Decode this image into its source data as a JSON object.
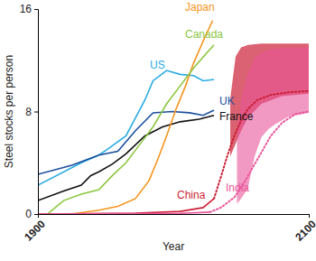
{
  "chart_data": {
    "type": "line",
    "x_label": "Year",
    "y_label": "Steel stocks per person",
    "xlim": [
      1900,
      2100
    ],
    "ylim": [
      0,
      16
    ],
    "xticks": [
      1900,
      2100
    ],
    "yticks": [
      0,
      8,
      16
    ],
    "grid": false,
    "series": [
      {
        "name": "US",
        "color": "#29abe2",
        "x": [
          1900,
          1932,
          1945,
          1952,
          1965,
          1972,
          1979,
          1985,
          1995,
          2005,
          2015,
          2022,
          2030
        ],
        "values": [
          2.25,
          4.0,
          4.6,
          5.1,
          6.1,
          7.5,
          8.9,
          10.4,
          11.2,
          10.9,
          10.8,
          10.4,
          10.5
        ]
      },
      {
        "name": "UK",
        "color": "#1b4f9c",
        "x": [
          1900,
          1925,
          1945,
          1959,
          1972,
          1985,
          1999,
          2012,
          2022,
          2030
        ],
        "values": [
          3.1,
          3.8,
          4.6,
          4.9,
          6.5,
          7.9,
          8.0,
          7.9,
          7.7,
          8.1
        ]
      },
      {
        "name": "France",
        "color": "#111111",
        "x": [
          1900,
          1919,
          1932,
          1939,
          1945,
          1955,
          1965,
          1979,
          1992,
          2005,
          2019,
          2030
        ],
        "values": [
          1.05,
          1.8,
          2.25,
          3.0,
          3.3,
          3.9,
          4.7,
          6.1,
          6.8,
          7.2,
          7.4,
          7.7
        ]
      },
      {
        "name": "Japan",
        "color": "#f7941d",
        "x": [
          1925,
          1945,
          1959,
          1972,
          1982,
          1989,
          1995,
          2002,
          2009,
          2015,
          2022,
          2029
        ],
        "values": [
          0,
          0.3,
          0.6,
          1.2,
          2.6,
          4.4,
          6.1,
          8.2,
          10.0,
          11.8,
          13.5,
          15.1
        ]
      },
      {
        "name": "Canada",
        "color": "#8cc63f",
        "x": [
          1907,
          1919,
          1932,
          1945,
          1955,
          1965,
          1975,
          1985,
          1995,
          2005,
          2015,
          2024,
          2030
        ],
        "values": [
          0,
          1.05,
          1.55,
          1.9,
          3.0,
          4.0,
          5.4,
          6.8,
          8.6,
          10.0,
          11.4,
          12.5,
          13.2
        ]
      },
      {
        "name": "China",
        "color": "#cc1f36",
        "x": [
          1900,
          1972,
          2005,
          2022,
          2030
        ],
        "values": [
          0,
          0.07,
          0.2,
          0.5,
          1.2
        ],
        "projection": {
          "x": [
            2030,
            2036,
            2040,
            2045,
            2050,
            2055,
            2062,
            2072,
            2085,
            2100
          ],
          "values": [
            1.2,
            3.2,
            4.6,
            6.1,
            7.3,
            8.2,
            8.9,
            9.3,
            9.5,
            9.6
          ]
        },
        "range": {
          "x": [
            2042,
            2046,
            2050,
            2055,
            2065,
            2080,
            2100
          ],
          "low": [
            4.5,
            5.5,
            6.5,
            7.5,
            8.6,
            9.2,
            9.4
          ],
          "high": [
            9.0,
            12.3,
            13.0,
            13.2,
            13.3,
            13.3,
            13.3
          ]
        }
      },
      {
        "name": "India",
        "color": "#e8559a",
        "x": [
          1900,
          2005,
          2027
        ],
        "values": [
          0,
          0.05,
          0.15
        ],
        "projection": {
          "x": [
            2027,
            2035,
            2045,
            2052,
            2059,
            2066,
            2072,
            2080,
            2090,
            2100
          ],
          "values": [
            0.15,
            0.5,
            1.3,
            2.4,
            3.7,
            5.0,
            6.1,
            7.1,
            7.8,
            8.0
          ]
        },
        "range": {
          "x": [
            2047,
            2050,
            2055,
            2060,
            2065,
            2070,
            2075,
            2085,
            2100
          ],
          "low": [
            0.8,
            1.2,
            2.0,
            4.5,
            6.0,
            6.6,
            7.0,
            7.6,
            7.9
          ],
          "high": [
            6.0,
            9.0,
            11.0,
            12.2,
            12.6,
            12.8,
            12.9,
            13.0,
            13.0
          ]
        }
      }
    ]
  }
}
